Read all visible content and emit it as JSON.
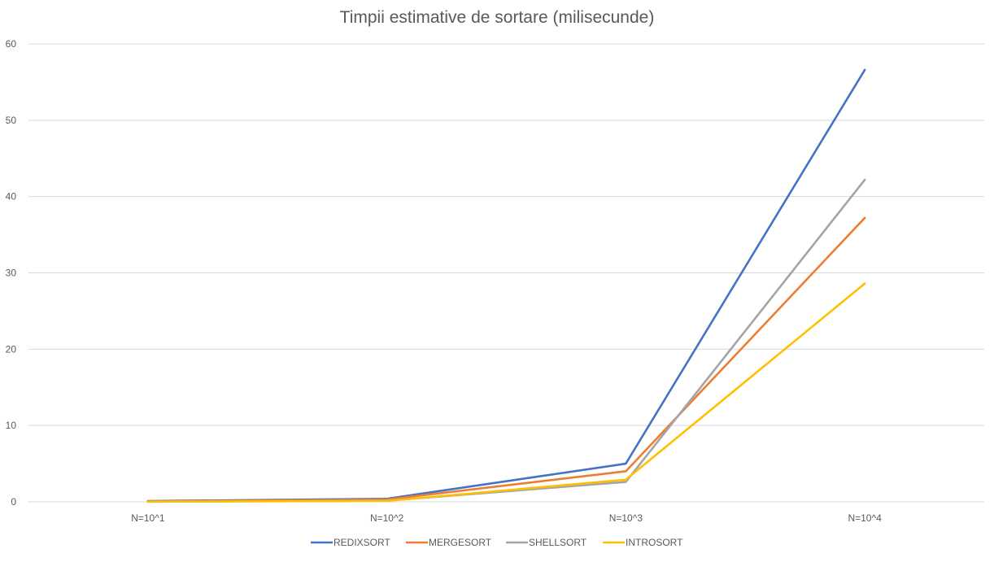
{
  "chart_data": {
    "type": "line",
    "title": "Timpii estimative de sortare (milisecunde)",
    "categories": [
      "N=10^1",
      "N=10^2",
      "N=10^3",
      "N=10^4"
    ],
    "ylim": [
      0,
      60
    ],
    "yticks": [
      0,
      10,
      20,
      30,
      40,
      50,
      60
    ],
    "grid": true,
    "legend_position": "bottom",
    "series": [
      {
        "name": "REDIXSORT",
        "color": "#4472C4",
        "values": [
          0.1,
          0.4,
          5.0,
          56.6
        ]
      },
      {
        "name": "MERGESORT",
        "color": "#ED7D31",
        "values": [
          0.05,
          0.3,
          4.0,
          37.2
        ]
      },
      {
        "name": "SHELLSORT",
        "color": "#A5A5A5",
        "values": [
          0.02,
          0.15,
          2.6,
          42.2
        ]
      },
      {
        "name": "INTROSORT",
        "color": "#FFC000",
        "values": [
          0.02,
          0.12,
          2.9,
          28.6
        ]
      }
    ]
  }
}
